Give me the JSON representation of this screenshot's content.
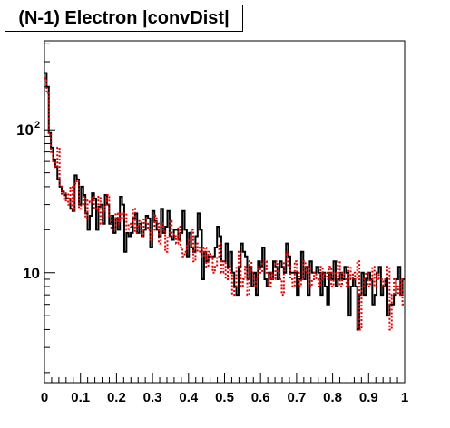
{
  "chart_data": {
    "type": "step-histogram",
    "title": "(N-1) Electron |convDist|",
    "xlabel": "",
    "ylabel": "",
    "xlim": [
      0,
      1
    ],
    "ylim": [
      1.7,
      420
    ],
    "yscale": "log",
    "x_ticks": [
      "0",
      "0.1",
      "0.2",
      "0.3",
      "0.4",
      "0.5",
      "0.6",
      "0.7",
      "0.8",
      "0.9",
      "1"
    ],
    "y_ticks": [
      {
        "value": 10,
        "base": "10",
        "exp": ""
      },
      {
        "value": 100,
        "base": "10",
        "exp": "2"
      }
    ],
    "bin_width": 0.01,
    "series": [
      {
        "color": "#000000",
        "style": "solid",
        "values": [
          250,
          200,
          95,
          75,
          62,
          55,
          45,
          40,
          37,
          35,
          33,
          33,
          28,
          27,
          48,
          45,
          30,
          40,
          35,
          26,
          20,
          25,
          36,
          33,
          20,
          29,
          30,
          22,
          35,
          30,
          22,
          25,
          19,
          24,
          20,
          34,
          30,
          14,
          19,
          18,
          19,
          24,
          26,
          19,
          22,
          18,
          20,
          25,
          24,
          15,
          27,
          23,
          20,
          18,
          28,
          19,
          21,
          27,
          18,
          17,
          20,
          20,
          17,
          19,
          27,
          20,
          13,
          19,
          15,
          14,
          18,
          26,
          20,
          9,
          14,
          12,
          13,
          13,
          13,
          15,
          21,
          18,
          12,
          12,
          16,
          11,
          14,
          10,
          8,
          7,
          11,
          16,
          14,
          13,
          9,
          11,
          8,
          10,
          7,
          12,
          11,
          15,
          9,
          8,
          10,
          9,
          12,
          11,
          9,
          12,
          11,
          10,
          16,
          13,
          10,
          10,
          10,
          7,
          9,
          14,
          9,
          11,
          7,
          12,
          10,
          10,
          11,
          10,
          7,
          10,
          8,
          6,
          10,
          9,
          12,
          8,
          9,
          10,
          9,
          11,
          10,
          5,
          8,
          9,
          8,
          4,
          7,
          10,
          7,
          9,
          10,
          9,
          6,
          7,
          10,
          11,
          7,
          8,
          9,
          5,
          6,
          6,
          7,
          9,
          11,
          7,
          9
        ]
      },
      {
        "color": "#e00000",
        "style": "dotted",
        "values": [
          230,
          180,
          92,
          70,
          60,
          55,
          75,
          40,
          35,
          32,
          36,
          30,
          40,
          27,
          42,
          44,
          28,
          30,
          34,
          24,
          32,
          31,
          34,
          28,
          27,
          34,
          22,
          27,
          30,
          35,
          25,
          20,
          20,
          26,
          22,
          26,
          24,
          26,
          20,
          22,
          21,
          28,
          19,
          21,
          23,
          18,
          24,
          22,
          20,
          17,
          20,
          25,
          22,
          16,
          22,
          20,
          14,
          18,
          23,
          19,
          18,
          16,
          21,
          15,
          13,
          14,
          16,
          17,
          20,
          12,
          16,
          14,
          15,
          13,
          15,
          11,
          14,
          13,
          10,
          11,
          13,
          16,
          10,
          12,
          9,
          11,
          10,
          7,
          8,
          11,
          14,
          8,
          9,
          11,
          7,
          12,
          10,
          8,
          9,
          11,
          10,
          12,
          12,
          10,
          8,
          10,
          9,
          12,
          10,
          9,
          7,
          12,
          14,
          11,
          9,
          8,
          12,
          10,
          8,
          9,
          12,
          10,
          11,
          8,
          9,
          10,
          9,
          8,
          11,
          9,
          10,
          9,
          11,
          8,
          10,
          9,
          12,
          8,
          10,
          9,
          8,
          11,
          9,
          10,
          9,
          12,
          4,
          8,
          9,
          10,
          8,
          9,
          11,
          8,
          10,
          9,
          9,
          8,
          9,
          11,
          4,
          7,
          9,
          8,
          7,
          9,
          6
        ]
      }
    ]
  }
}
